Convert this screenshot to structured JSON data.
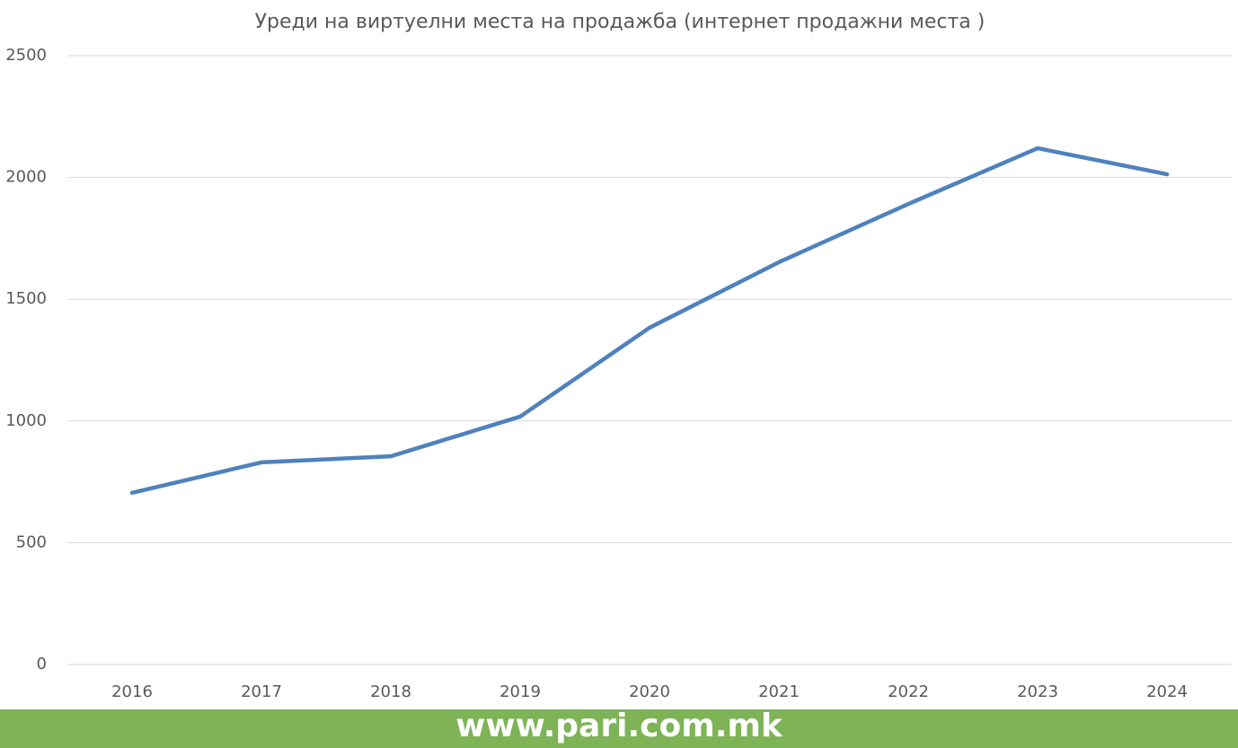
{
  "chart_data": {
    "type": "line",
    "title": "Уреди на виртуелни места на продажба (интернет продажни места )",
    "categories": [
      "2016",
      "2017",
      "2018",
      "2019",
      "2020",
      "2021",
      "2022",
      "2023",
      "2024"
    ],
    "series": [
      {
        "name": "Уреди",
        "color": "#4f81bd",
        "values": [
          705,
          830,
          855,
          1018,
          1383,
          1652,
          1891,
          2120,
          2013
        ]
      }
    ],
    "ylim": [
      0,
      2500
    ],
    "yticks": [
      0,
      500,
      1000,
      1500,
      2000,
      2500
    ],
    "grid": true,
    "legend": false
  },
  "footer": "www.pari.com.mk"
}
